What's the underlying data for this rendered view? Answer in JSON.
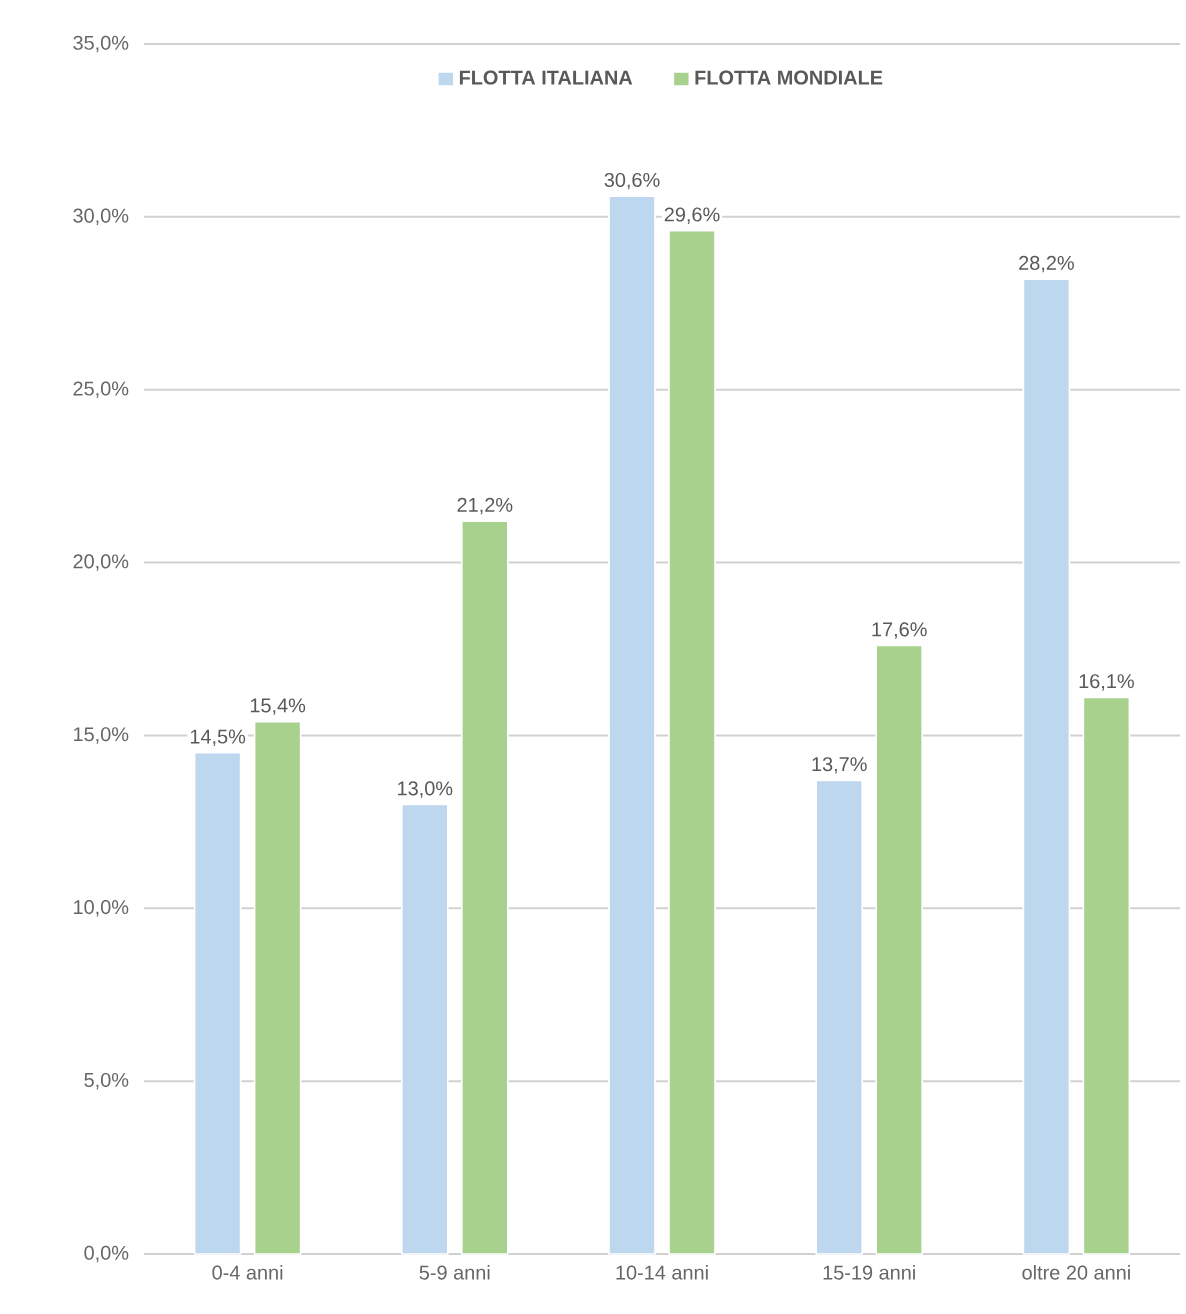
{
  "chart_data": {
    "type": "bar",
    "categories": [
      "0-4 anni",
      "5-9 anni",
      "10-14 anni",
      "15-19 anni",
      "oltre 20 anni"
    ],
    "series": [
      {
        "name": "FLOTTA ITALIANA",
        "color": "#bdd7ee",
        "values": [
          14.5,
          13.0,
          30.6,
          13.7,
          28.2
        ],
        "value_labels": [
          "14,5%",
          "13,0%",
          "30,6%",
          "13,7%",
          "28,2%"
        ]
      },
      {
        "name": "FLOTTA MONDIALE",
        "color": "#a9d18e",
        "values": [
          15.4,
          21.2,
          29.6,
          17.6,
          16.1
        ],
        "value_labels": [
          "15,4%",
          "21,2%",
          "29,6%",
          "17,6%",
          "16,1%"
        ]
      }
    ],
    "ylim": [
      0,
      35
    ],
    "yticks": [
      {
        "value": 0,
        "label": "0,0%"
      },
      {
        "value": 5,
        "label": "5,0%"
      },
      {
        "value": 10,
        "label": "10,0%"
      },
      {
        "value": 15,
        "label": "15,0%"
      },
      {
        "value": 20,
        "label": "20,0%"
      },
      {
        "value": 25,
        "label": "25,0%"
      },
      {
        "value": 30,
        "label": "30,0%"
      },
      {
        "value": 35,
        "label": "35,0%"
      }
    ],
    "grid": "y",
    "legend": "top"
  }
}
